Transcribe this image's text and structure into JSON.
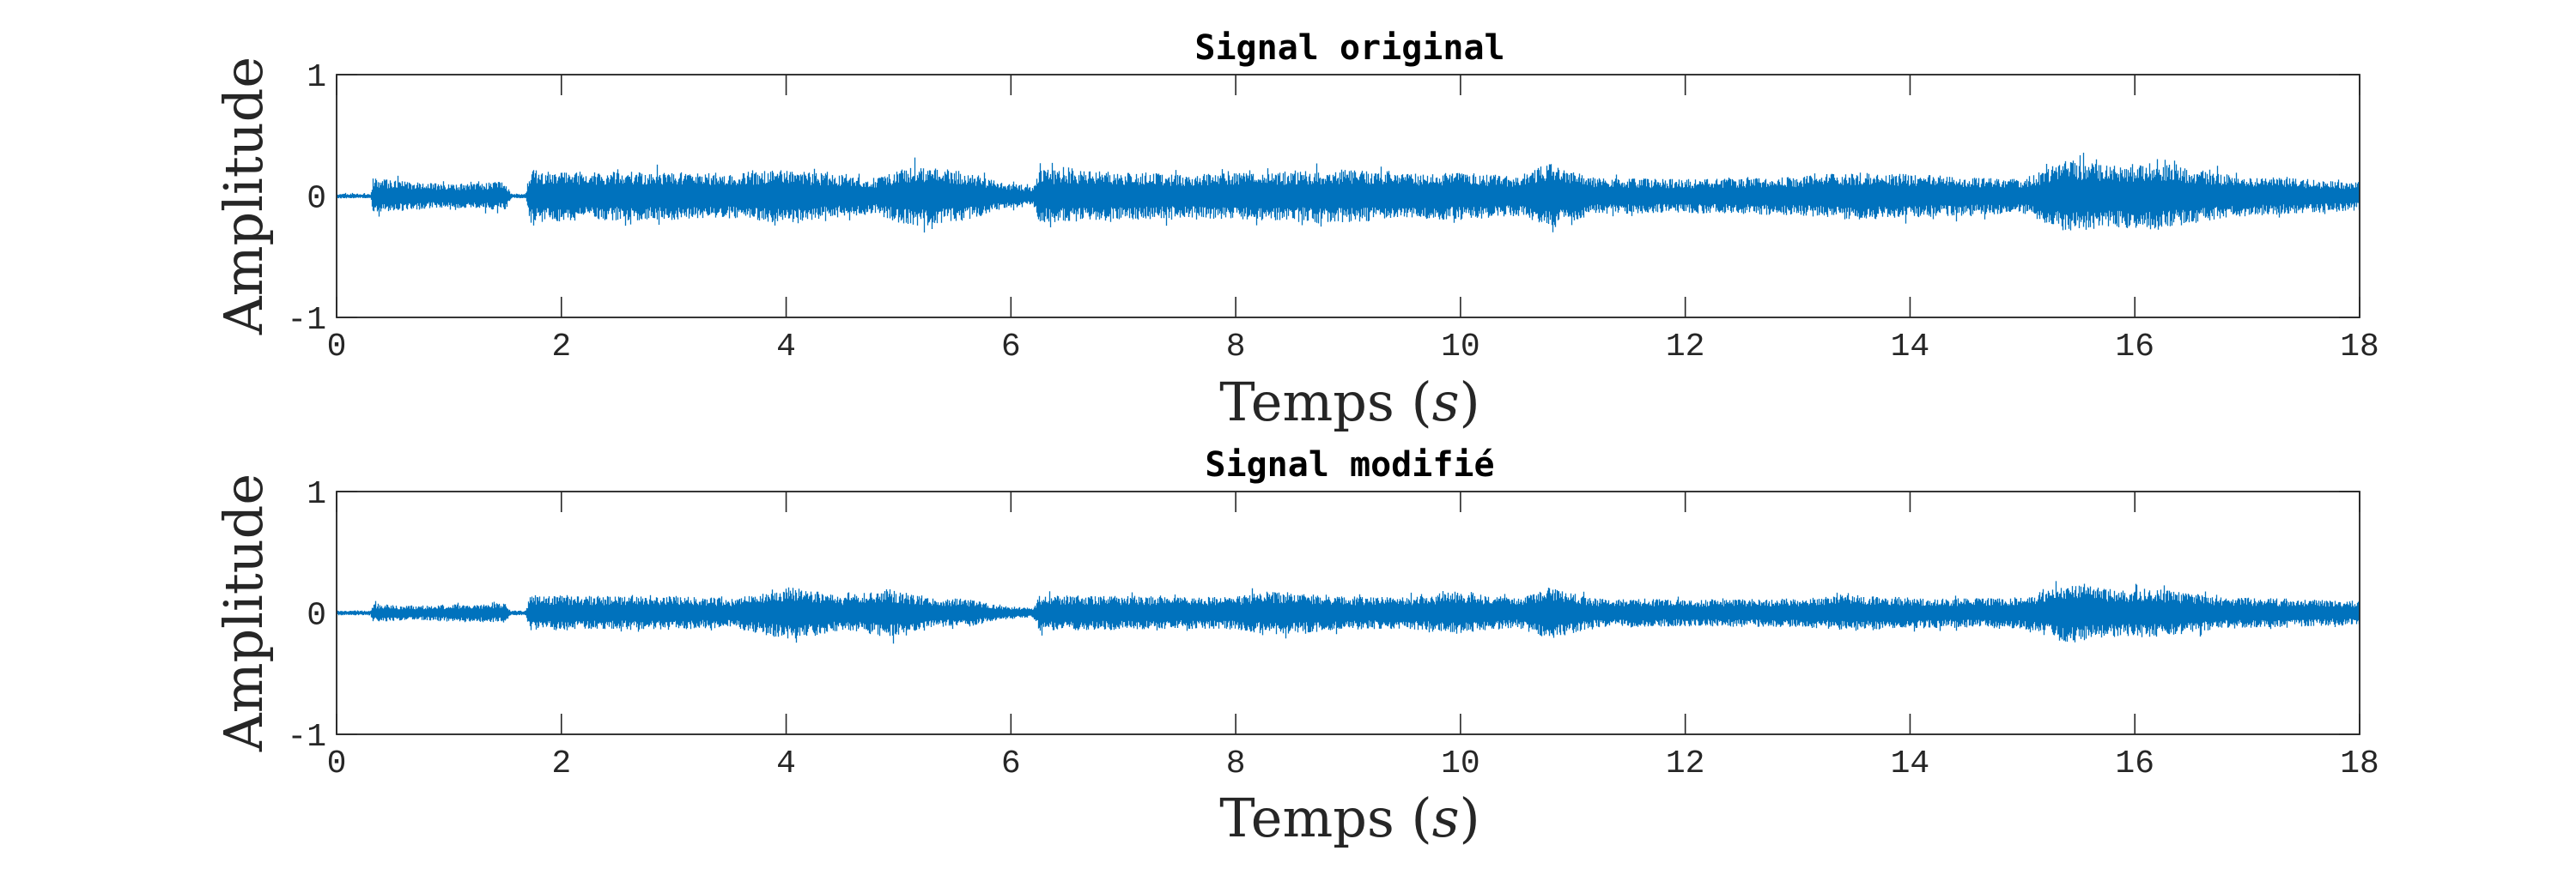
{
  "colors": {
    "waveform": "#0072bd",
    "axes": "#262626",
    "background": "#ffffff"
  },
  "chart_data": [
    {
      "type": "line",
      "title": "Signal original",
      "xlabel": "Temps (s)",
      "xlabel_main": "Temps",
      "xlabel_unit": "s",
      "ylabel": "Amplitude",
      "xlim": [
        0,
        18
      ],
      "ylim": [
        -1,
        1
      ],
      "x_ticks": [
        0,
        2,
        4,
        6,
        8,
        10,
        12,
        14,
        16,
        18
      ],
      "y_ticks": [
        -1,
        0,
        1
      ],
      "grid": false,
      "legend": false,
      "series": [
        {
          "color": "#0072bd",
          "envelope_times": [
            0,
            0.3,
            0.32,
            0.6,
            1.0,
            1.5,
            1.55,
            1.68,
            1.72,
            2.2,
            3.0,
            3.5,
            3.9,
            4.2,
            4.8,
            5.0,
            5.2,
            5.6,
            5.9,
            6.2,
            6.25,
            7.0,
            7.5,
            8.0,
            8.5,
            9.0,
            9.5,
            10.0,
            10.5,
            10.8,
            11.2,
            12.0,
            13.0,
            13.5,
            14.0,
            14.5,
            15.0,
            15.4,
            15.8,
            16.2,
            16.8,
            17.3,
            18.0
          ],
          "envelope_amplitude": [
            0.02,
            0.02,
            0.15,
            0.12,
            0.1,
            0.12,
            0.02,
            0.02,
            0.22,
            0.2,
            0.2,
            0.18,
            0.22,
            0.2,
            0.15,
            0.22,
            0.25,
            0.2,
            0.12,
            0.08,
            0.22,
            0.2,
            0.18,
            0.2,
            0.2,
            0.22,
            0.18,
            0.2,
            0.16,
            0.28,
            0.15,
            0.14,
            0.16,
            0.2,
            0.18,
            0.16,
            0.14,
            0.3,
            0.25,
            0.28,
            0.18,
            0.15,
            0.12
          ]
        }
      ]
    },
    {
      "type": "line",
      "title": "Signal modifié",
      "xlabel": "Temps (s)",
      "xlabel_main": "Temps",
      "xlabel_unit": "s",
      "ylabel": "Amplitude",
      "xlim": [
        0,
        18
      ],
      "ylim": [
        -1,
        1
      ],
      "x_ticks": [
        0,
        2,
        4,
        6,
        8,
        10,
        12,
        14,
        16,
        18
      ],
      "y_ticks": [
        -1,
        0,
        1
      ],
      "grid": false,
      "legend": false,
      "series": [
        {
          "color": "#0072bd",
          "envelope_times": [
            0,
            0.3,
            0.32,
            0.6,
            1.0,
            1.5,
            1.55,
            1.68,
            1.72,
            2.2,
            3.0,
            3.5,
            3.9,
            4.1,
            4.5,
            4.9,
            5.0,
            5.3,
            5.6,
            5.9,
            6.2,
            6.25,
            7.0,
            7.5,
            8.0,
            8.3,
            9.0,
            9.5,
            10.0,
            10.5,
            10.8,
            11.2,
            12.0,
            13.0,
            13.5,
            14.0,
            14.5,
            15.0,
            15.4,
            15.8,
            16.2,
            16.8,
            17.3,
            18.0
          ],
          "envelope_amplitude": [
            0.02,
            0.02,
            0.08,
            0.06,
            0.07,
            0.08,
            0.02,
            0.02,
            0.15,
            0.14,
            0.14,
            0.12,
            0.2,
            0.22,
            0.14,
            0.2,
            0.18,
            0.12,
            0.12,
            0.06,
            0.04,
            0.15,
            0.14,
            0.13,
            0.14,
            0.18,
            0.14,
            0.13,
            0.18,
            0.12,
            0.22,
            0.12,
            0.11,
            0.12,
            0.15,
            0.13,
            0.12,
            0.13,
            0.24,
            0.2,
            0.2,
            0.13,
            0.12,
            0.1
          ]
        }
      ]
    }
  ]
}
